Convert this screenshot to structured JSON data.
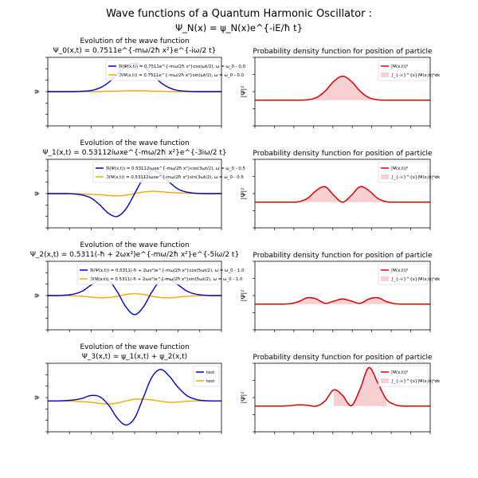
{
  "figure": {
    "title": "Wave functions of a Quantum Harmonic Oscillator :",
    "subtitle": "Ψ_N(x) = ψ_N(x)e^{-iE/ħ t}"
  },
  "chart_data": [
    {
      "type": "line",
      "panel": "wave-0",
      "title": "Evolution of the wave function",
      "subtitle": "Ψ_0(x,t) = 0.7511e^{-mω/2ħ x²}e^{-iω/2 t}",
      "ylabel": "ψ",
      "grid": false,
      "legend_placement": "top-right",
      "x": [
        -5,
        -4.5,
        -4,
        -3.5,
        -3,
        -2.5,
        -2,
        -1.5,
        -1,
        -0.5,
        0,
        0.5,
        1,
        1.5,
        2,
        2.5,
        3,
        3.5,
        4,
        4.5,
        5
      ],
      "series": [
        {
          "name": "ℜ(Ψ(x,t)) = 0.7511e^{-mω/2ħ x²}cos(ωt/2), ω = ω_0 - 0.0",
          "color": "#0000cc",
          "values": [
            0,
            0,
            0,
            0,
            0.01,
            0.03,
            0.1,
            0.24,
            0.46,
            0.66,
            0.75,
            0.66,
            0.46,
            0.24,
            0.1,
            0.03,
            0.01,
            0,
            0,
            0,
            0
          ]
        },
        {
          "name": "ℑ(Ψ(x,t)) = 0.7511e^{-mω/2ħ x²}sin(ωt/2), ω = ω_0 - 0.0",
          "color": "#f5a800",
          "values": [
            0,
            0,
            0,
            0,
            0,
            0,
            0,
            0.01,
            0.01,
            0.02,
            0.02,
            0.02,
            0.01,
            0.01,
            0,
            0,
            0,
            0,
            0,
            0,
            0
          ]
        }
      ]
    },
    {
      "type": "area",
      "panel": "pdf-0",
      "title": "Probability density function for position of particle",
      "ylabel": "|Ψ|²",
      "grid": false,
      "legend_placement": "top-right",
      "x": [
        -5,
        -4.5,
        -4,
        -3.5,
        -3,
        -2.5,
        -2,
        -1.5,
        -1,
        -0.5,
        0,
        0.5,
        1,
        1.5,
        2,
        2.5,
        3,
        3.5,
        4,
        4.5,
        5
      ],
      "series": [
        {
          "name": "|Ψ(x,t)|²",
          "color": "#dd0000",
          "values": [
            0,
            0,
            0,
            0,
            0,
            0,
            0.01,
            0.06,
            0.21,
            0.44,
            0.56,
            0.44,
            0.21,
            0.06,
            0.01,
            0,
            0,
            0,
            0,
            0,
            0
          ]
        },
        {
          "name": "∫_{-∞}^{x}|Ψ(x,t)|²dx",
          "color": "#f8d0d4",
          "fill_range": [
            -5,
            5
          ]
        }
      ]
    },
    {
      "type": "line",
      "panel": "wave-1",
      "title": "Evolution of the wave function",
      "subtitle": "Ψ_1(x,t) = 0.53112iωxe^{-mω/2ħ x²}e^{-3iω/2 t}",
      "ylabel": "ψ",
      "grid": false,
      "legend_placement": "top-right",
      "x": [
        -5,
        -4.5,
        -4,
        -3.5,
        -3,
        -2.5,
        -2,
        -1.5,
        -1,
        -0.5,
        0,
        0.5,
        1,
        1.5,
        2,
        2.5,
        3,
        3.5,
        4,
        4.5,
        5
      ],
      "series": [
        {
          "name": "ℜ(Ψ(x,t)) = 0.53112iωxe^{-mω/2ħ x²}cos(3ωt/2), ω = ω_0 - 0.5",
          "color": "#0000cc",
          "values": [
            0,
            0,
            0,
            -0.01,
            -0.04,
            -0.12,
            -0.3,
            -0.52,
            -0.6,
            -0.4,
            0,
            0.4,
            0.6,
            0.52,
            0.3,
            0.12,
            0.04,
            0.01,
            0,
            0,
            0
          ]
        },
        {
          "name": "ℑ(Ψ(x,t)) = 0.53112iωxe^{-mω/2ħ x²}sin(3ωt/2), ω = ω_0 - 0.5",
          "color": "#f5a800",
          "values": [
            0,
            0,
            0,
            0,
            -0.01,
            -0.02,
            -0.03,
            -0.05,
            -0.06,
            -0.04,
            0,
            0.04,
            0.06,
            0.05,
            0.03,
            0.02,
            0.01,
            0,
            0,
            0,
            0
          ]
        }
      ]
    },
    {
      "type": "area",
      "panel": "pdf-1",
      "title": "Probability density function for position of particle",
      "ylabel": "|Ψ|²",
      "grid": false,
      "legend_placement": "top-right",
      "x": [
        -5,
        -4.5,
        -4,
        -3.5,
        -3,
        -2.5,
        -2,
        -1.5,
        -1,
        -0.5,
        0,
        0.5,
        1,
        1.5,
        2,
        2.5,
        3,
        3.5,
        4,
        4.5,
        5
      ],
      "series": [
        {
          "name": "|Ψ(x,t)|²",
          "color": "#dd0000",
          "values": [
            0,
            0,
            0,
            0,
            0,
            0.01,
            0.09,
            0.27,
            0.36,
            0.16,
            0,
            0.16,
            0.36,
            0.27,
            0.09,
            0.01,
            0,
            0,
            0,
            0,
            0
          ]
        },
        {
          "name": "∫_{-∞}^{x}|Ψ(x,t)|²dx",
          "color": "#f8d0d4",
          "fill_range": [
            -5,
            5
          ]
        }
      ]
    },
    {
      "type": "line",
      "panel": "wave-2",
      "title": "Evolution of the wave function",
      "subtitle": "Ψ_2(x,t) = 0.5311(-ħ + 2ωx²)e^{-mω/2ħ x²}e^{-5iω/2 t}",
      "ylabel": "ψ",
      "grid": false,
      "legend_placement": "top-right",
      "x": [
        -5,
        -4.5,
        -4,
        -3.5,
        -3,
        -2.5,
        -2,
        -1.5,
        -1,
        -0.5,
        0,
        0.5,
        1,
        1.5,
        2,
        2.5,
        3,
        3.5,
        4,
        4.5,
        5
      ],
      "series": [
        {
          "name": "ℜ(Ψ(x,t)) = 0.5311(-ħ + 2ωx²)e^{-mω/2ħ x²}cos(5ωt/2), ω = ω_0 - 1.0",
          "color": "#0000cc",
          "values": [
            0,
            0,
            0.01,
            0.04,
            0.12,
            0.28,
            0.42,
            0.4,
            0.1,
            -0.3,
            -0.5,
            -0.3,
            0.1,
            0.4,
            0.42,
            0.28,
            0.12,
            0.04,
            0.01,
            0,
            0
          ]
        },
        {
          "name": "ℑ(Ψ(x,t)) = 0.5311(-ħ + 2ωx²)e^{-mω/2ħ x²}sin(5ωt/2), ω = ω_0 - 1.0",
          "color": "#f5a800",
          "values": [
            0,
            0,
            0,
            -0.01,
            -0.02,
            -0.04,
            -0.06,
            -0.05,
            -0.02,
            0.03,
            0.05,
            0.03,
            -0.02,
            -0.05,
            -0.06,
            -0.04,
            -0.02,
            -0.01,
            0,
            0,
            0
          ]
        }
      ]
    },
    {
      "type": "area",
      "panel": "pdf-2",
      "title": "Probability density function for position of particle",
      "ylabel": "|Ψ|²",
      "grid": false,
      "legend_placement": "top-right",
      "x": [
        -5,
        -4.5,
        -4,
        -3.5,
        -3,
        -2.5,
        -2,
        -1.5,
        -1,
        -0.5,
        0,
        0.5,
        1,
        1.5,
        2,
        2.5,
        3,
        3.5,
        4,
        4.5,
        5
      ],
      "series": [
        {
          "name": "|Ψ(x,t)|²",
          "color": "#dd0000",
          "values": [
            0,
            0,
            0,
            0,
            0.01,
            0.06,
            0.15,
            0.12,
            0.02,
            0.07,
            0.12,
            0.07,
            0.02,
            0.12,
            0.15,
            0.06,
            0.01,
            0,
            0,
            0,
            0
          ]
        },
        {
          "name": "∫_{-∞}^{x}|Ψ(x,t)|²dx",
          "color": "#f8d0d4",
          "fill_range": [
            -5,
            5
          ]
        }
      ]
    },
    {
      "type": "line",
      "panel": "wave-3",
      "title": "Evolution of the wave function",
      "subtitle": "Ψ_3(x,t) = ψ_1(x,t) + ψ_2(x,t)",
      "ylabel": "ψ",
      "grid": false,
      "legend_placement": "top-right",
      "x": [
        -5,
        -4.5,
        -4,
        -3.5,
        -3,
        -2.5,
        -2,
        -1.5,
        -1,
        -0.5,
        0,
        0.5,
        1,
        1.5,
        2,
        2.5,
        3,
        3.5,
        4,
        4.5,
        5
      ],
      "series": [
        {
          "name": "test",
          "color": "#0000cc",
          "values": [
            0,
            0,
            0.01,
            0.03,
            0.08,
            0.16,
            0.12,
            -0.12,
            -0.5,
            -0.7,
            -0.5,
            0.1,
            0.7,
            0.92,
            0.72,
            0.4,
            0.16,
            0.05,
            0.01,
            0,
            0
          ]
        },
        {
          "name": "test",
          "color": "#f5a800",
          "values": [
            0,
            0,
            0,
            -0.01,
            -0.02,
            -0.04,
            -0.07,
            -0.09,
            -0.06,
            0,
            0.05,
            0.05,
            0.03,
            -0.01,
            -0.04,
            -0.03,
            -0.01,
            0,
            0,
            0,
            0
          ]
        }
      ]
    },
    {
      "type": "area",
      "panel": "pdf-3",
      "title": "Probability density function for position of particle",
      "ylabel": "|Ψ|²",
      "grid": false,
      "legend_placement": "top-right",
      "x": [
        -5,
        -4.5,
        -4,
        -3.5,
        -3,
        -2.5,
        -2,
        -1.5,
        -1,
        -0.5,
        0,
        0.5,
        1,
        1.5,
        2,
        2.5,
        3,
        3.5,
        4,
        4.5,
        5
      ],
      "series": [
        {
          "name": "|Ψ(x,t)|²",
          "color": "#dd0000",
          "values": [
            0,
            0,
            0,
            0,
            0.01,
            0.03,
            0.02,
            0,
            0.12,
            0.38,
            0.25,
            0.01,
            0.4,
            0.9,
            0.55,
            0.16,
            0.03,
            0,
            0,
            0,
            0
          ]
        },
        {
          "name": "∫_{-∞}^{x}|Ψ(x,t)|²dx",
          "color": "#f8d0d4",
          "fill_range": [
            -0.5,
            2.5
          ]
        }
      ]
    }
  ]
}
